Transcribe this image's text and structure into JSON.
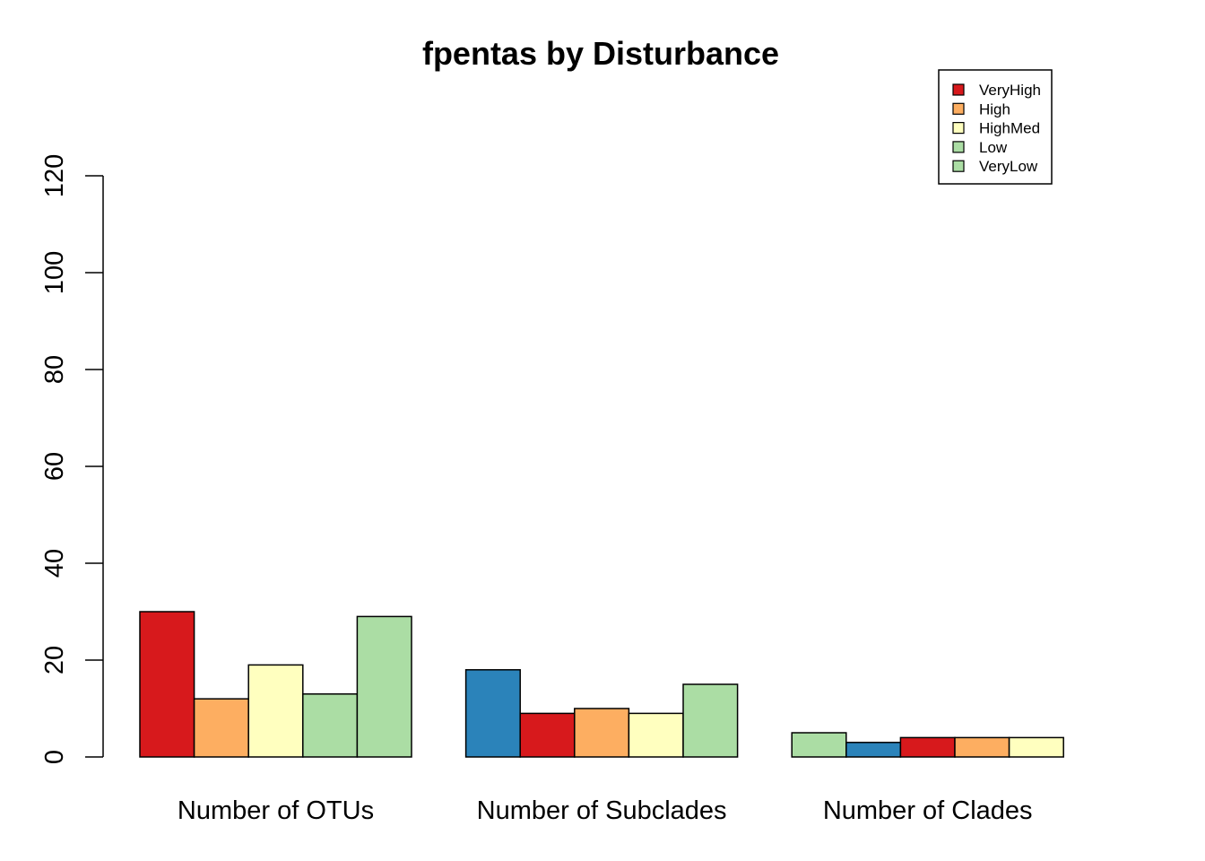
{
  "chart_data": {
    "type": "bar",
    "title": "fpentas by Disturbance",
    "xlabel": "",
    "ylabel": "",
    "ylim": [
      0,
      120
    ],
    "yticks": [
      0,
      20,
      40,
      60,
      80,
      100,
      120
    ],
    "grid": false,
    "legend_position": "top-right",
    "legend": [
      {
        "label": "VeryHigh",
        "color": "#D7191C"
      },
      {
        "label": "High",
        "color": "#FDAE61"
      },
      {
        "label": "HighMed",
        "color": "#FFFFBF"
      },
      {
        "label": "Low",
        "color": "#ABDDA4"
      },
      {
        "label": "VeryLow",
        "color": "#ABDDA4"
      }
    ],
    "categories": [
      "Number of OTUs",
      "Number of Subclades",
      "Number of Clades"
    ],
    "groups": [
      {
        "category": "Number of OTUs",
        "bars": [
          {
            "value": 30,
            "color": "#D7191C"
          },
          {
            "value": 12,
            "color": "#FDAE61"
          },
          {
            "value": 19,
            "color": "#FFFFBF"
          },
          {
            "value": 13,
            "color": "#ABDDA4"
          },
          {
            "value": 29,
            "color": "#ABDDA4"
          }
        ]
      },
      {
        "category": "Number of Subclades",
        "bars": [
          {
            "value": 18,
            "color": "#2B83BA"
          },
          {
            "value": 9,
            "color": "#D7191C"
          },
          {
            "value": 10,
            "color": "#FDAE61"
          },
          {
            "value": 9,
            "color": "#FFFFBF"
          },
          {
            "value": 15,
            "color": "#ABDDA4"
          }
        ]
      },
      {
        "category": "Number of Clades",
        "bars": [
          {
            "value": 5,
            "color": "#ABDDA4"
          },
          {
            "value": 3,
            "color": "#2B83BA"
          },
          {
            "value": 4,
            "color": "#D7191C"
          },
          {
            "value": 4,
            "color": "#FDAE61"
          },
          {
            "value": 4,
            "color": "#FFFFBF"
          }
        ]
      }
    ]
  }
}
